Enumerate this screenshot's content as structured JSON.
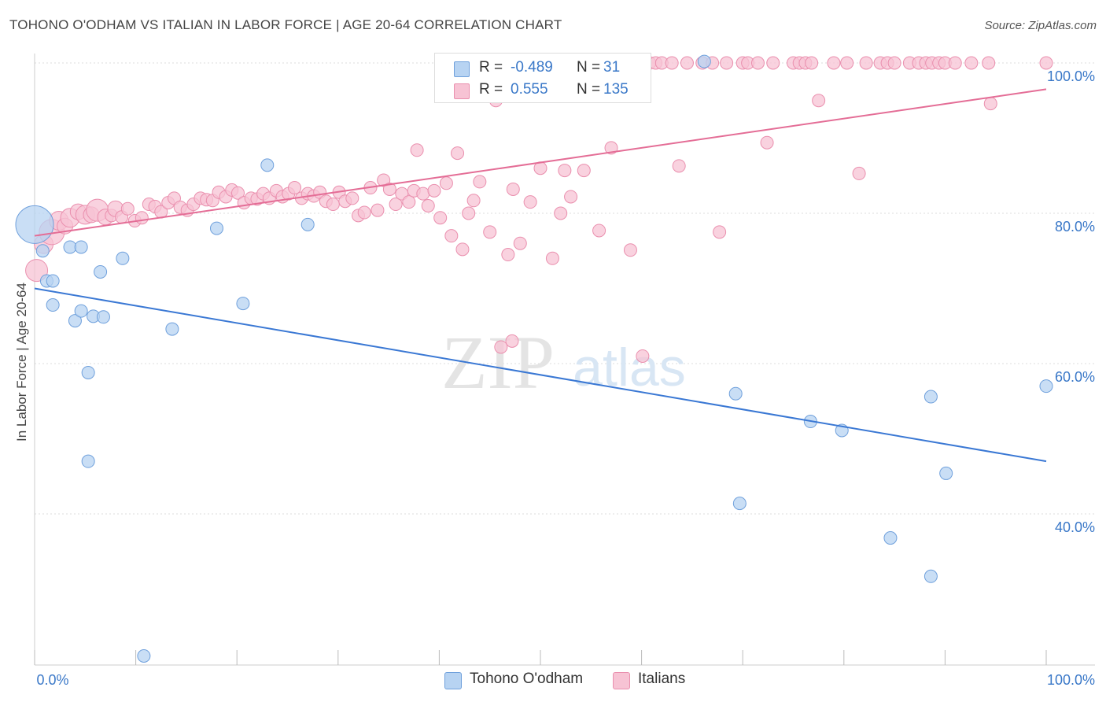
{
  "header": {
    "title": "TOHONO O'ODHAM VS ITALIAN IN LABOR FORCE | AGE 20-64 CORRELATION CHART",
    "source": "Source: ZipAtlas.com"
  },
  "watermark": {
    "zip": "ZIP",
    "atlas": "atlas"
  },
  "legend": {
    "rows": [
      {
        "r_label": "R =",
        "r_value": "-0.489",
        "n_label": "N =",
        "n_value": "31"
      },
      {
        "r_label": "R =",
        "r_value": "0.555",
        "n_label": "N =",
        "n_value": "135"
      }
    ]
  },
  "colors": {
    "blue_fill": "#b7d3f2",
    "blue_stroke": "#6fa0dc",
    "blue_line": "#3a78d4",
    "pink_fill": "#f7c3d4",
    "pink_stroke": "#ea8fae",
    "pink_line": "#e46d96",
    "tick_label": "#3a78c8",
    "grid": "#dddddd"
  },
  "chart_data": {
    "type": "scatter",
    "title": "TOHONO O'ODHAM VS ITALIAN IN LABOR FORCE | AGE 20-64 CORRELATION CHART",
    "xlabel": "",
    "ylabel": "In Labor Force | Age 20-64",
    "xlim": [
      0,
      100
    ],
    "ylim": [
      20,
      102
    ],
    "x_tick_labels": [
      "0.0%",
      "100.0%"
    ],
    "y_ticks": [
      40,
      60,
      80,
      100
    ],
    "y_tick_labels": [
      "40.0%",
      "60.0%",
      "80.0%",
      "100.0%"
    ],
    "grid": true,
    "legend_position": "bottom-center",
    "series": [
      {
        "name": "Tohono O'odham",
        "r": -0.489,
        "n": 31,
        "trend": [
          [
            0,
            70.0
          ],
          [
            100,
            47.0
          ]
        ],
        "points": [
          [
            0.0,
            78.5,
            24
          ],
          [
            0.8,
            75.0,
            8
          ],
          [
            1.2,
            71.0,
            8
          ],
          [
            1.8,
            71.0,
            8
          ],
          [
            1.8,
            67.8,
            8
          ],
          [
            3.5,
            75.5,
            8
          ],
          [
            4.6,
            75.5,
            8
          ],
          [
            4.0,
            65.7,
            8
          ],
          [
            4.6,
            67.0,
            8
          ],
          [
            5.8,
            66.3,
            8
          ],
          [
            6.8,
            66.2,
            8
          ],
          [
            6.5,
            72.2,
            8
          ],
          [
            8.7,
            74.0,
            8
          ],
          [
            5.3,
            58.8,
            8
          ],
          [
            5.3,
            47.0,
            8
          ],
          [
            13.6,
            64.6,
            8
          ],
          [
            18.0,
            78.0,
            8
          ],
          [
            20.6,
            68.0,
            8
          ],
          [
            23.0,
            86.4,
            8
          ],
          [
            27.0,
            78.5,
            8
          ],
          [
            10.8,
            21.1,
            8
          ],
          [
            66.2,
            100.2,
            8
          ],
          [
            69.3,
            56.0,
            8
          ],
          [
            69.7,
            41.4,
            8
          ],
          [
            76.7,
            52.3,
            8
          ],
          [
            79.8,
            51.1,
            8
          ],
          [
            84.6,
            36.8,
            8
          ],
          [
            88.6,
            55.6,
            8
          ],
          [
            88.6,
            31.7,
            8
          ],
          [
            90.1,
            45.4,
            8
          ],
          [
            100.0,
            57.0,
            8
          ]
        ]
      },
      {
        "name": "Italians",
        "r": 0.555,
        "n": 135,
        "trend": [
          [
            0,
            77.0
          ],
          [
            100,
            96.5
          ]
        ],
        "points": [
          [
            0.2,
            72.4,
            14
          ],
          [
            0.9,
            75.9,
            12
          ],
          [
            1.7,
            77.5,
            16
          ],
          [
            2.4,
            79.0,
            12
          ],
          [
            3.0,
            78.3,
            10
          ],
          [
            3.5,
            79.4,
            12
          ],
          [
            4.3,
            80.2,
            10
          ],
          [
            5.0,
            79.8,
            12
          ],
          [
            5.6,
            79.8,
            10
          ],
          [
            6.2,
            80.4,
            14
          ],
          [
            7.0,
            79.5,
            10
          ],
          [
            7.6,
            79.7,
            8
          ],
          [
            8.0,
            80.6,
            10
          ],
          [
            8.6,
            79.5,
            8
          ],
          [
            9.2,
            80.6,
            8
          ],
          [
            9.9,
            79.0,
            8
          ],
          [
            10.6,
            79.4,
            8
          ],
          [
            11.3,
            81.2,
            8
          ],
          [
            11.9,
            80.9,
            8
          ],
          [
            12.5,
            80.2,
            8
          ],
          [
            13.2,
            81.4,
            8
          ],
          [
            13.8,
            82.0,
            8
          ],
          [
            14.4,
            80.8,
            8
          ],
          [
            15.1,
            80.4,
            8
          ],
          [
            15.7,
            81.2,
            8
          ],
          [
            16.4,
            82.0,
            8
          ],
          [
            17.0,
            81.8,
            8
          ],
          [
            17.6,
            81.7,
            8
          ],
          [
            18.2,
            82.8,
            8
          ],
          [
            18.9,
            82.2,
            8
          ],
          [
            19.5,
            83.1,
            8
          ],
          [
            20.1,
            82.7,
            8
          ],
          [
            20.7,
            81.4,
            8
          ],
          [
            21.4,
            82.0,
            8
          ],
          [
            22.0,
            81.9,
            8
          ],
          [
            22.6,
            82.6,
            8
          ],
          [
            23.2,
            82.0,
            8
          ],
          [
            23.9,
            83.0,
            8
          ],
          [
            24.5,
            82.2,
            8
          ],
          [
            25.1,
            82.6,
            8
          ],
          [
            25.7,
            83.4,
            8
          ],
          [
            26.4,
            82.0,
            8
          ],
          [
            27.0,
            82.6,
            8
          ],
          [
            27.6,
            82.3,
            8
          ],
          [
            28.2,
            82.8,
            8
          ],
          [
            28.8,
            81.6,
            8
          ],
          [
            29.5,
            81.2,
            8
          ],
          [
            30.1,
            82.8,
            8
          ],
          [
            30.7,
            81.6,
            8
          ],
          [
            31.4,
            82.0,
            8
          ],
          [
            32.0,
            79.7,
            8
          ],
          [
            32.6,
            80.1,
            8
          ],
          [
            33.2,
            83.4,
            8
          ],
          [
            33.9,
            80.4,
            8
          ],
          [
            34.5,
            84.4,
            8
          ],
          [
            35.1,
            83.2,
            8
          ],
          [
            35.7,
            81.2,
            8
          ],
          [
            36.3,
            82.6,
            8
          ],
          [
            37.0,
            81.5,
            8
          ],
          [
            37.5,
            83.0,
            8
          ],
          [
            37.8,
            88.4,
            8
          ],
          [
            38.4,
            82.6,
            8
          ],
          [
            38.9,
            81.0,
            8
          ],
          [
            39.5,
            83.0,
            8
          ],
          [
            40.1,
            79.4,
            8
          ],
          [
            40.7,
            84.0,
            8
          ],
          [
            41.2,
            77.0,
            8
          ],
          [
            41.8,
            88.0,
            8
          ],
          [
            42.3,
            75.2,
            8
          ],
          [
            42.9,
            80.0,
            8
          ],
          [
            43.4,
            81.7,
            8
          ],
          [
            44.0,
            84.2,
            8
          ],
          [
            45.0,
            77.5,
            8
          ],
          [
            45.6,
            95.0,
            8
          ],
          [
            46.1,
            62.2,
            8
          ],
          [
            47.2,
            63.0,
            8
          ],
          [
            46.8,
            74.5,
            8
          ],
          [
            47.3,
            83.2,
            8
          ],
          [
            48.0,
            76.0,
            8
          ],
          [
            49.0,
            81.5,
            8
          ],
          [
            50.0,
            86.0,
            8
          ],
          [
            50.6,
            100.0,
            8
          ],
          [
            51.2,
            74.0,
            8
          ],
          [
            52.0,
            80.0,
            8
          ],
          [
            52.4,
            85.7,
            8
          ],
          [
            53.0,
            82.2,
            8
          ],
          [
            53.7,
            100.0,
            8
          ],
          [
            54.3,
            85.7,
            8
          ],
          [
            55.1,
            100.0,
            8
          ],
          [
            55.8,
            77.7,
            8
          ],
          [
            56.4,
            100.0,
            8
          ],
          [
            57.0,
            88.7,
            8
          ],
          [
            57.6,
            100.0,
            8
          ],
          [
            58.3,
            100.0,
            8
          ],
          [
            58.9,
            75.1,
            8
          ],
          [
            59.5,
            100.0,
            8
          ],
          [
            60.1,
            61.0,
            8
          ],
          [
            60.8,
            100.0,
            8
          ],
          [
            61.4,
            100.0,
            8
          ],
          [
            62.0,
            100.0,
            8
          ],
          [
            63.0,
            100.0,
            8
          ],
          [
            63.7,
            86.3,
            8
          ],
          [
            64.5,
            100.0,
            8
          ],
          [
            66.0,
            100.0,
            8
          ],
          [
            67.0,
            100.0,
            8
          ],
          [
            67.7,
            77.5,
            8
          ],
          [
            68.4,
            100.0,
            8
          ],
          [
            70.0,
            100.0,
            8
          ],
          [
            70.5,
            100.0,
            8
          ],
          [
            71.5,
            100.0,
            8
          ],
          [
            72.4,
            89.4,
            8
          ],
          [
            73.0,
            100.0,
            8
          ],
          [
            75.0,
            100.0,
            8
          ],
          [
            75.6,
            100.0,
            8
          ],
          [
            76.2,
            100.0,
            8
          ],
          [
            76.8,
            100.0,
            8
          ],
          [
            77.5,
            95.0,
            8
          ],
          [
            79.0,
            100.0,
            8
          ],
          [
            80.3,
            100.0,
            8
          ],
          [
            81.5,
            85.3,
            8
          ],
          [
            82.2,
            100.0,
            8
          ],
          [
            83.6,
            100.0,
            8
          ],
          [
            84.3,
            100.0,
            8
          ],
          [
            85.0,
            100.0,
            8
          ],
          [
            86.5,
            100.0,
            8
          ],
          [
            87.4,
            100.0,
            8
          ],
          [
            88.1,
            100.0,
            8
          ],
          [
            88.7,
            100.0,
            8
          ],
          [
            89.4,
            100.0,
            8
          ],
          [
            90.0,
            100.0,
            8
          ],
          [
            91.0,
            100.0,
            8
          ],
          [
            92.6,
            100.0,
            8
          ],
          [
            94.3,
            100.0,
            8
          ],
          [
            94.5,
            94.6,
            8
          ],
          [
            100.0,
            100.0,
            8
          ]
        ]
      }
    ]
  },
  "bottom_legend": {
    "items": [
      "Tohono O'odham",
      "Italians"
    ]
  }
}
